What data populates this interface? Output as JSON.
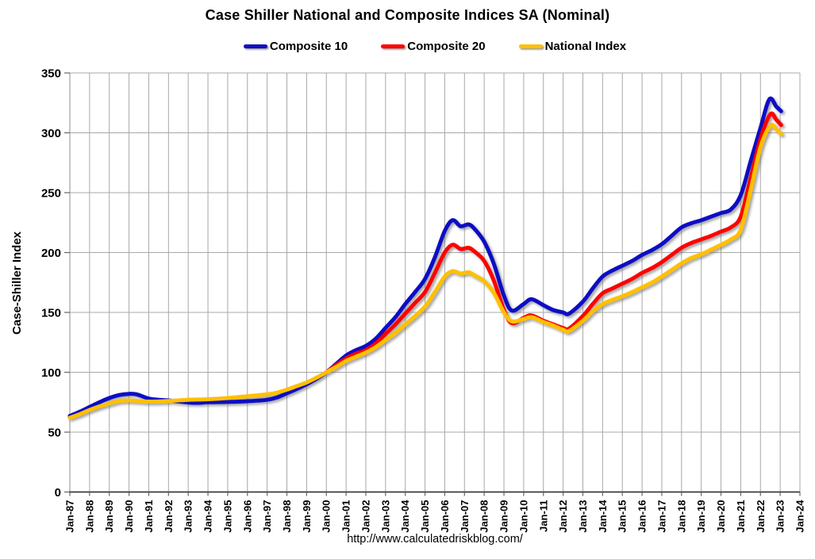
{
  "title": "Case Shiller National and Composite Indices SA (Nominal)",
  "source_url": "http://www.calculatedriskblog.com/",
  "chart_data": {
    "type": "line",
    "title": "Case Shiller National and Composite Indices SA (Nominal)",
    "xlabel": "",
    "ylabel": "Case-Shiller Index",
    "ylim": [
      0,
      350
    ],
    "yticks": [
      0,
      50,
      100,
      150,
      200,
      250,
      300,
      350
    ],
    "x_range_years": [
      1987,
      2024
    ],
    "x_tick_labels": [
      "Jan-87",
      "Jan-88",
      "Jan-89",
      "Jan-90",
      "Jan-91",
      "Jan-92",
      "Jan-93",
      "Jan-94",
      "Jan-95",
      "Jan-96",
      "Jan-97",
      "Jan-98",
      "Jan-99",
      "Jan-00",
      "Jan-01",
      "Jan-02",
      "Jan-03",
      "Jan-04",
      "Jan-05",
      "Jan-06",
      "Jan-07",
      "Jan-08",
      "Jan-09",
      "Jan-10",
      "Jan-11",
      "Jan-12",
      "Jan-13",
      "Jan-14",
      "Jan-15",
      "Jan-16",
      "Jan-17",
      "Jan-18",
      "Jan-19",
      "Jan-20",
      "Jan-21",
      "Jan-22",
      "Jan-23",
      "Jan-24"
    ],
    "grid": true,
    "grid_color": "#a8a8a8",
    "legend_position": "top",
    "series": [
      {
        "name": "Composite 10",
        "color": "#0f0fc4",
        "points": [
          [
            1987.0,
            63.5
          ],
          [
            1987.5,
            67
          ],
          [
            1988.0,
            71
          ],
          [
            1988.5,
            75
          ],
          [
            1989.0,
            78.5
          ],
          [
            1989.5,
            81
          ],
          [
            1990.0,
            82
          ],
          [
            1990.4,
            81.5
          ],
          [
            1991.0,
            78
          ],
          [
            1991.5,
            77
          ],
          [
            1992.0,
            76.5
          ],
          [
            1993.0,
            74.8
          ],
          [
            1993.5,
            74.5
          ],
          [
            1994.0,
            75
          ],
          [
            1995.0,
            75.2
          ],
          [
            1996.0,
            75.8
          ],
          [
            1997.0,
            77
          ],
          [
            1997.5,
            79
          ],
          [
            1998.0,
            82.5
          ],
          [
            1998.5,
            86
          ],
          [
            1999.0,
            90
          ],
          [
            1999.5,
            94.5
          ],
          [
            2000.0,
            100
          ],
          [
            2000.5,
            107
          ],
          [
            2001.0,
            114
          ],
          [
            2001.5,
            118.5
          ],
          [
            2002.0,
            122
          ],
          [
            2002.5,
            128
          ],
          [
            2003.0,
            137
          ],
          [
            2003.5,
            146
          ],
          [
            2004.0,
            157
          ],
          [
            2004.5,
            167
          ],
          [
            2005.0,
            178
          ],
          [
            2005.5,
            196
          ],
          [
            2006.0,
            218
          ],
          [
            2006.4,
            227
          ],
          [
            2006.8,
            222
          ],
          [
            2007.2,
            223.5
          ],
          [
            2007.5,
            220
          ],
          [
            2008.0,
            209
          ],
          [
            2008.5,
            190
          ],
          [
            2009.0,
            164
          ],
          [
            2009.4,
            151.5
          ],
          [
            2010.0,
            157
          ],
          [
            2010.4,
            161
          ],
          [
            2011.0,
            156
          ],
          [
            2011.5,
            152
          ],
          [
            2012.0,
            150
          ],
          [
            2012.3,
            149
          ],
          [
            2013.0,
            159
          ],
          [
            2013.5,
            170
          ],
          [
            2014.0,
            180
          ],
          [
            2014.5,
            185
          ],
          [
            2015.0,
            189
          ],
          [
            2015.5,
            193
          ],
          [
            2016.0,
            198
          ],
          [
            2016.5,
            202
          ],
          [
            2017.0,
            207
          ],
          [
            2017.5,
            214
          ],
          [
            2018.0,
            221
          ],
          [
            2018.5,
            224.5
          ],
          [
            2019.0,
            227
          ],
          [
            2019.5,
            230
          ],
          [
            2020.0,
            233
          ],
          [
            2020.5,
            236
          ],
          [
            2021.0,
            248
          ],
          [
            2021.5,
            276
          ],
          [
            2022.0,
            304
          ],
          [
            2022.45,
            328
          ],
          [
            2022.8,
            322
          ],
          [
            2023.05,
            318
          ]
        ]
      },
      {
        "name": "Composite 20",
        "color": "#ff0000",
        "points": [
          [
            2000.0,
            100
          ],
          [
            2000.5,
            106
          ],
          [
            2001.0,
            111.5
          ],
          [
            2001.5,
            115.5
          ],
          [
            2002.0,
            118.5
          ],
          [
            2002.5,
            124
          ],
          [
            2003.0,
            132
          ],
          [
            2003.5,
            140
          ],
          [
            2004.0,
            149
          ],
          [
            2004.5,
            158
          ],
          [
            2005.0,
            167
          ],
          [
            2005.5,
            183
          ],
          [
            2006.0,
            200
          ],
          [
            2006.4,
            206.5
          ],
          [
            2006.8,
            203
          ],
          [
            2007.2,
            204
          ],
          [
            2007.5,
            201
          ],
          [
            2008.0,
            193
          ],
          [
            2008.5,
            176
          ],
          [
            2009.0,
            152
          ],
          [
            2009.4,
            141
          ],
          [
            2010.0,
            145.5
          ],
          [
            2010.4,
            147.5
          ],
          [
            2011.0,
            143
          ],
          [
            2011.5,
            140
          ],
          [
            2012.0,
            137
          ],
          [
            2012.3,
            136.5
          ],
          [
            2013.0,
            147
          ],
          [
            2013.5,
            157
          ],
          [
            2014.0,
            166
          ],
          [
            2014.5,
            170
          ],
          [
            2015.0,
            174
          ],
          [
            2015.5,
            178
          ],
          [
            2016.0,
            183
          ],
          [
            2016.5,
            187
          ],
          [
            2017.0,
            192
          ],
          [
            2017.5,
            198
          ],
          [
            2018.0,
            204
          ],
          [
            2018.5,
            208
          ],
          [
            2019.0,
            211
          ],
          [
            2019.5,
            214
          ],
          [
            2020.0,
            217.5
          ],
          [
            2020.5,
            221
          ],
          [
            2021.0,
            230
          ],
          [
            2021.5,
            262
          ],
          [
            2022.0,
            295
          ],
          [
            2022.5,
            315.5
          ],
          [
            2022.8,
            311
          ],
          [
            2023.05,
            306.5
          ]
        ]
      },
      {
        "name": "National Index",
        "color": "#ffc000",
        "points": [
          [
            1987.0,
            62
          ],
          [
            1987.5,
            65
          ],
          [
            1988.0,
            68.5
          ],
          [
            1988.5,
            71.5
          ],
          [
            1989.0,
            74
          ],
          [
            1989.5,
            76
          ],
          [
            1990.0,
            76.5
          ],
          [
            1990.5,
            76
          ],
          [
            1991.0,
            75.5
          ],
          [
            1992.0,
            76
          ],
          [
            1993.0,
            77
          ],
          [
            1994.0,
            77.5
          ],
          [
            1995.0,
            78.5
          ],
          [
            1996.0,
            80
          ],
          [
            1997.0,
            81.5
          ],
          [
            1997.5,
            83
          ],
          [
            1998.0,
            85.5
          ],
          [
            1998.5,
            88.5
          ],
          [
            1999.0,
            91.5
          ],
          [
            1999.5,
            95.5
          ],
          [
            2000.0,
            100
          ],
          [
            2000.5,
            104.5
          ],
          [
            2001.0,
            109.5
          ],
          [
            2001.5,
            113
          ],
          [
            2002.0,
            116.5
          ],
          [
            2002.5,
            121
          ],
          [
            2003.0,
            127
          ],
          [
            2003.5,
            133
          ],
          [
            2004.0,
            140
          ],
          [
            2004.5,
            147
          ],
          [
            2005.0,
            155
          ],
          [
            2005.5,
            167
          ],
          [
            2006.0,
            180
          ],
          [
            2006.4,
            184.5
          ],
          [
            2006.8,
            182.5
          ],
          [
            2007.2,
            183.5
          ],
          [
            2007.5,
            181
          ],
          [
            2008.0,
            176
          ],
          [
            2008.5,
            166
          ],
          [
            2009.0,
            150
          ],
          [
            2009.4,
            142.5
          ],
          [
            2010.0,
            144.5
          ],
          [
            2010.4,
            146
          ],
          [
            2011.0,
            142
          ],
          [
            2011.5,
            139
          ],
          [
            2012.0,
            135.5
          ],
          [
            2012.3,
            134.5
          ],
          [
            2013.0,
            143
          ],
          [
            2013.5,
            151
          ],
          [
            2014.0,
            157
          ],
          [
            2014.5,
            160.5
          ],
          [
            2015.0,
            163.5
          ],
          [
            2015.5,
            167
          ],
          [
            2016.0,
            171
          ],
          [
            2016.5,
            175
          ],
          [
            2017.0,
            180
          ],
          [
            2017.5,
            185.5
          ],
          [
            2018.0,
            191
          ],
          [
            2018.5,
            195.5
          ],
          [
            2019.0,
            198.5
          ],
          [
            2019.5,
            202.5
          ],
          [
            2020.0,
            206.5
          ],
          [
            2020.5,
            211
          ],
          [
            2021.0,
            219
          ],
          [
            2021.5,
            252
          ],
          [
            2022.0,
            288
          ],
          [
            2022.5,
            306
          ],
          [
            2022.8,
            303
          ],
          [
            2023.05,
            299
          ]
        ]
      }
    ]
  }
}
